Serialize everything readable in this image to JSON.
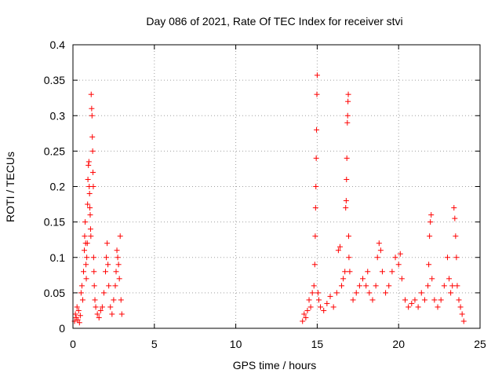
{
  "chart_data": {
    "type": "scatter",
    "title": "Day 086 of 2021, Rate Of TEC Index for receiver stvi",
    "xlabel": "GPS time / hours",
    "ylabel": "ROTI / TECUs",
    "xlim": [
      0,
      25
    ],
    "ylim": [
      0,
      0.4
    ],
    "xticks": [
      0,
      5,
      10,
      15,
      20,
      25
    ],
    "yticks": [
      0,
      0.05,
      0.1,
      0.15,
      0.2,
      0.25,
      0.3,
      0.35,
      0.4
    ],
    "xtick_labels": [
      "0",
      "5",
      "10",
      "15",
      "20",
      "25"
    ],
    "ytick_labels": [
      "0",
      "0.05",
      "0.1",
      "0.15",
      "0.2",
      "0.25",
      "0.3",
      "0.35",
      "0.4"
    ],
    "grid": true,
    "marker": "+",
    "color": "#ff0000",
    "series": [
      {
        "points": [
          [
            0.1,
            0.01
          ],
          [
            0.15,
            0.02
          ],
          [
            0.2,
            0.015
          ],
          [
            0.25,
            0.03
          ],
          [
            0.3,
            0.012
          ],
          [
            0.35,
            0.025
          ],
          [
            0.4,
            0.008
          ],
          [
            0.45,
            0.018
          ],
          [
            0.5,
            0.05
          ],
          [
            0.55,
            0.06
          ],
          [
            0.6,
            0.04
          ],
          [
            0.65,
            0.08
          ],
          [
            0.7,
            0.11
          ],
          [
            0.72,
            0.13
          ],
          [
            0.75,
            0.15
          ],
          [
            0.78,
            0.12
          ],
          [
            0.8,
            0.09
          ],
          [
            0.82,
            0.07
          ],
          [
            0.85,
            0.1
          ],
          [
            0.88,
            0.12
          ],
          [
            0.9,
            0.175
          ],
          [
            0.92,
            0.21
          ],
          [
            0.95,
            0.23
          ],
          [
            0.98,
            0.235
          ],
          [
            1.0,
            0.2
          ],
          [
            1.02,
            0.19
          ],
          [
            1.04,
            0.17
          ],
          [
            1.06,
            0.16
          ],
          [
            1.08,
            0.14
          ],
          [
            1.1,
            0.13
          ],
          [
            1.12,
            0.33
          ],
          [
            1.15,
            0.31
          ],
          [
            1.17,
            0.3
          ],
          [
            1.19,
            0.27
          ],
          [
            1.21,
            0.25
          ],
          [
            1.23,
            0.22
          ],
          [
            1.25,
            0.2
          ],
          [
            1.27,
            0.1
          ],
          [
            1.29,
            0.08
          ],
          [
            1.31,
            0.06
          ],
          [
            1.35,
            0.04
          ],
          [
            1.4,
            0.03
          ],
          [
            1.5,
            0.02
          ],
          [
            1.6,
            0.015
          ],
          [
            1.7,
            0.025
          ],
          [
            1.8,
            0.03
          ],
          [
            1.9,
            0.05
          ],
          [
            2.0,
            0.08
          ],
          [
            2.05,
            0.1
          ],
          [
            2.1,
            0.12
          ],
          [
            2.15,
            0.09
          ],
          [
            2.2,
            0.06
          ],
          [
            2.3,
            0.03
          ],
          [
            2.4,
            0.02
          ],
          [
            2.5,
            0.04
          ],
          [
            2.6,
            0.06
          ],
          [
            2.65,
            0.08
          ],
          [
            2.7,
            0.11
          ],
          [
            2.75,
            0.1
          ],
          [
            2.8,
            0.09
          ],
          [
            2.85,
            0.07
          ],
          [
            2.9,
            0.13
          ],
          [
            2.95,
            0.04
          ],
          [
            3.0,
            0.02
          ],
          [
            14.1,
            0.01
          ],
          [
            14.2,
            0.02
          ],
          [
            14.3,
            0.015
          ],
          [
            14.4,
            0.025
          ],
          [
            14.5,
            0.04
          ],
          [
            14.6,
            0.03
          ],
          [
            14.7,
            0.05
          ],
          [
            14.8,
            0.06
          ],
          [
            14.85,
            0.09
          ],
          [
            14.88,
            0.13
          ],
          [
            14.9,
            0.17
          ],
          [
            14.92,
            0.2
          ],
          [
            14.94,
            0.24
          ],
          [
            14.96,
            0.28
          ],
          [
            14.98,
            0.33
          ],
          [
            15.0,
            0.357
          ],
          [
            15.05,
            0.05
          ],
          [
            15.1,
            0.04
          ],
          [
            15.2,
            0.03
          ],
          [
            15.4,
            0.025
          ],
          [
            15.6,
            0.035
          ],
          [
            15.8,
            0.045
          ],
          [
            16.0,
            0.03
          ],
          [
            16.2,
            0.05
          ],
          [
            16.3,
            0.11
          ],
          [
            16.4,
            0.115
          ],
          [
            16.5,
            0.06
          ],
          [
            16.6,
            0.07
          ],
          [
            16.7,
            0.08
          ],
          [
            16.75,
            0.17
          ],
          [
            16.78,
            0.18
          ],
          [
            16.8,
            0.21
          ],
          [
            16.82,
            0.24
          ],
          [
            16.85,
            0.29
          ],
          [
            16.87,
            0.3
          ],
          [
            16.89,
            0.32
          ],
          [
            16.91,
            0.33
          ],
          [
            16.93,
            0.13
          ],
          [
            16.95,
            0.1
          ],
          [
            17.0,
            0.08
          ],
          [
            17.2,
            0.04
          ],
          [
            17.4,
            0.05
          ],
          [
            17.6,
            0.06
          ],
          [
            17.8,
            0.07
          ],
          [
            18.0,
            0.06
          ],
          [
            18.1,
            0.08
          ],
          [
            18.2,
            0.05
          ],
          [
            18.4,
            0.04
          ],
          [
            18.6,
            0.06
          ],
          [
            18.7,
            0.1
          ],
          [
            18.8,
            0.12
          ],
          [
            18.9,
            0.11
          ],
          [
            19.0,
            0.08
          ],
          [
            19.2,
            0.05
          ],
          [
            19.4,
            0.06
          ],
          [
            19.6,
            0.08
          ],
          [
            19.8,
            0.1
          ],
          [
            20.0,
            0.09
          ],
          [
            20.1,
            0.105
          ],
          [
            20.2,
            0.07
          ],
          [
            20.4,
            0.04
          ],
          [
            20.6,
            0.03
          ],
          [
            20.8,
            0.035
          ],
          [
            21.0,
            0.04
          ],
          [
            21.2,
            0.03
          ],
          [
            21.4,
            0.05
          ],
          [
            21.6,
            0.04
          ],
          [
            21.8,
            0.06
          ],
          [
            21.85,
            0.09
          ],
          [
            21.9,
            0.13
          ],
          [
            21.95,
            0.15
          ],
          [
            22.0,
            0.16
          ],
          [
            22.05,
            0.07
          ],
          [
            22.2,
            0.04
          ],
          [
            22.4,
            0.03
          ],
          [
            22.6,
            0.04
          ],
          [
            22.8,
            0.06
          ],
          [
            23.0,
            0.1
          ],
          [
            23.1,
            0.07
          ],
          [
            23.2,
            0.05
          ],
          [
            23.3,
            0.06
          ],
          [
            23.4,
            0.17
          ],
          [
            23.45,
            0.155
          ],
          [
            23.5,
            0.13
          ],
          [
            23.55,
            0.1
          ],
          [
            23.6,
            0.06
          ],
          [
            23.7,
            0.04
          ],
          [
            23.8,
            0.03
          ],
          [
            23.9,
            0.02
          ],
          [
            24.0,
            0.01
          ]
        ]
      }
    ]
  }
}
